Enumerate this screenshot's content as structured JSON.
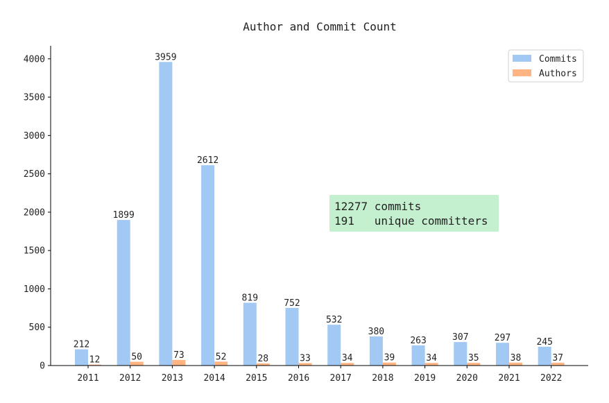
{
  "chart_data": {
    "type": "bar",
    "title": "Author and Commit Count",
    "xlabel": "",
    "ylabel": "",
    "categories": [
      "2011",
      "2012",
      "2013",
      "2014",
      "2015",
      "2016",
      "2017",
      "2018",
      "2019",
      "2020",
      "2021",
      "2022"
    ],
    "series": [
      {
        "name": "Commits",
        "color": "#a1c9f4",
        "values": [
          212,
          1899,
          3959,
          2612,
          819,
          752,
          532,
          380,
          263,
          307,
          297,
          245
        ]
      },
      {
        "name": "Authors",
        "color": "#ffb482",
        "values": [
          12,
          50,
          73,
          52,
          28,
          33,
          34,
          39,
          34,
          35,
          38,
          37
        ]
      }
    ],
    "ylim": [
      0,
      4170
    ],
    "yticks": [
      0,
      500,
      1000,
      1500,
      2000,
      2500,
      3000,
      3500,
      4000
    ],
    "grid": false,
    "legend": "top-right",
    "annotation": {
      "line1": "12277 commits",
      "line2": "191   unique committers",
      "background": "#c5f0cf"
    }
  }
}
